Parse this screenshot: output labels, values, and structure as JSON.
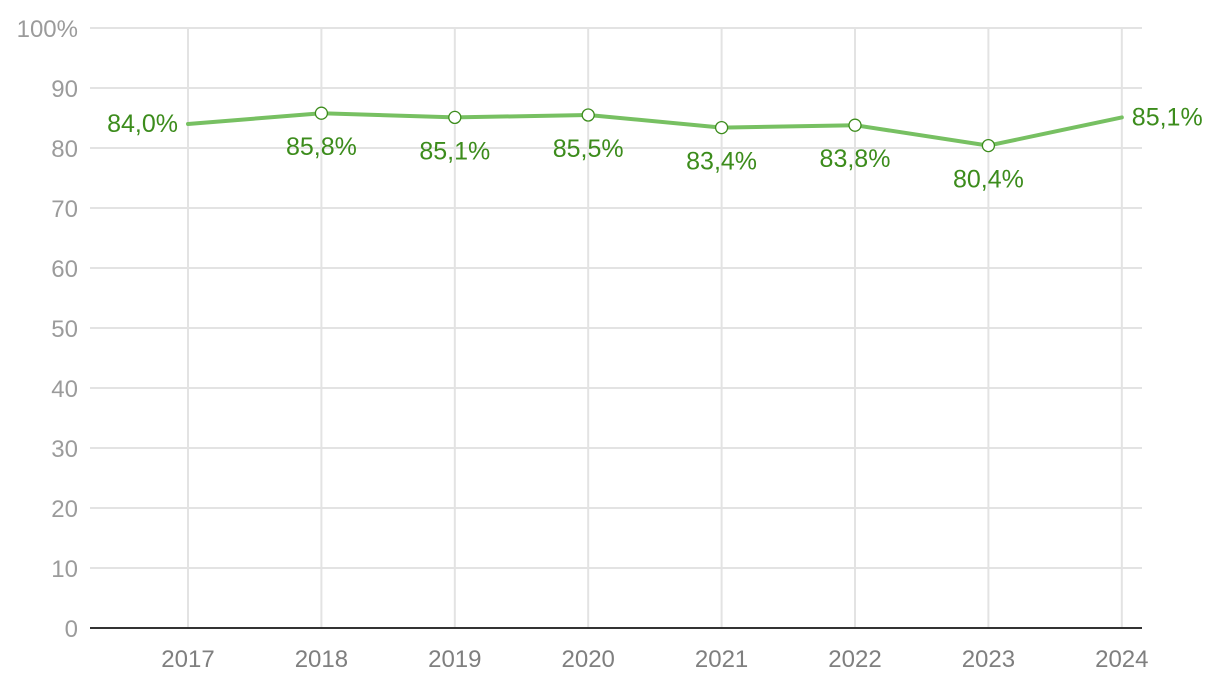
{
  "chart_data": {
    "type": "line",
    "categories": [
      "2017",
      "2018",
      "2019",
      "2020",
      "2021",
      "2022",
      "2023",
      "2024"
    ],
    "series": [
      {
        "values": [
          84.0,
          85.8,
          85.1,
          85.5,
          83.4,
          83.8,
          80.4,
          85.1
        ],
        "labels": [
          "84,0%",
          "85,8%",
          "85,1%",
          "85,5%",
          "83,4%",
          "83,8%",
          "80,4%",
          "85,1%"
        ],
        "color": "#77c062",
        "label_color": "#3c8c1c"
      }
    ],
    "y_ticks": [
      "0",
      "10",
      "20",
      "30",
      "40",
      "50",
      "60",
      "70",
      "80",
      "90",
      "100%"
    ],
    "ylim": [
      0,
      100
    ],
    "grid": true,
    "legend": "none",
    "grid_color": "#e3e3e3",
    "axis_color": "#333333"
  }
}
